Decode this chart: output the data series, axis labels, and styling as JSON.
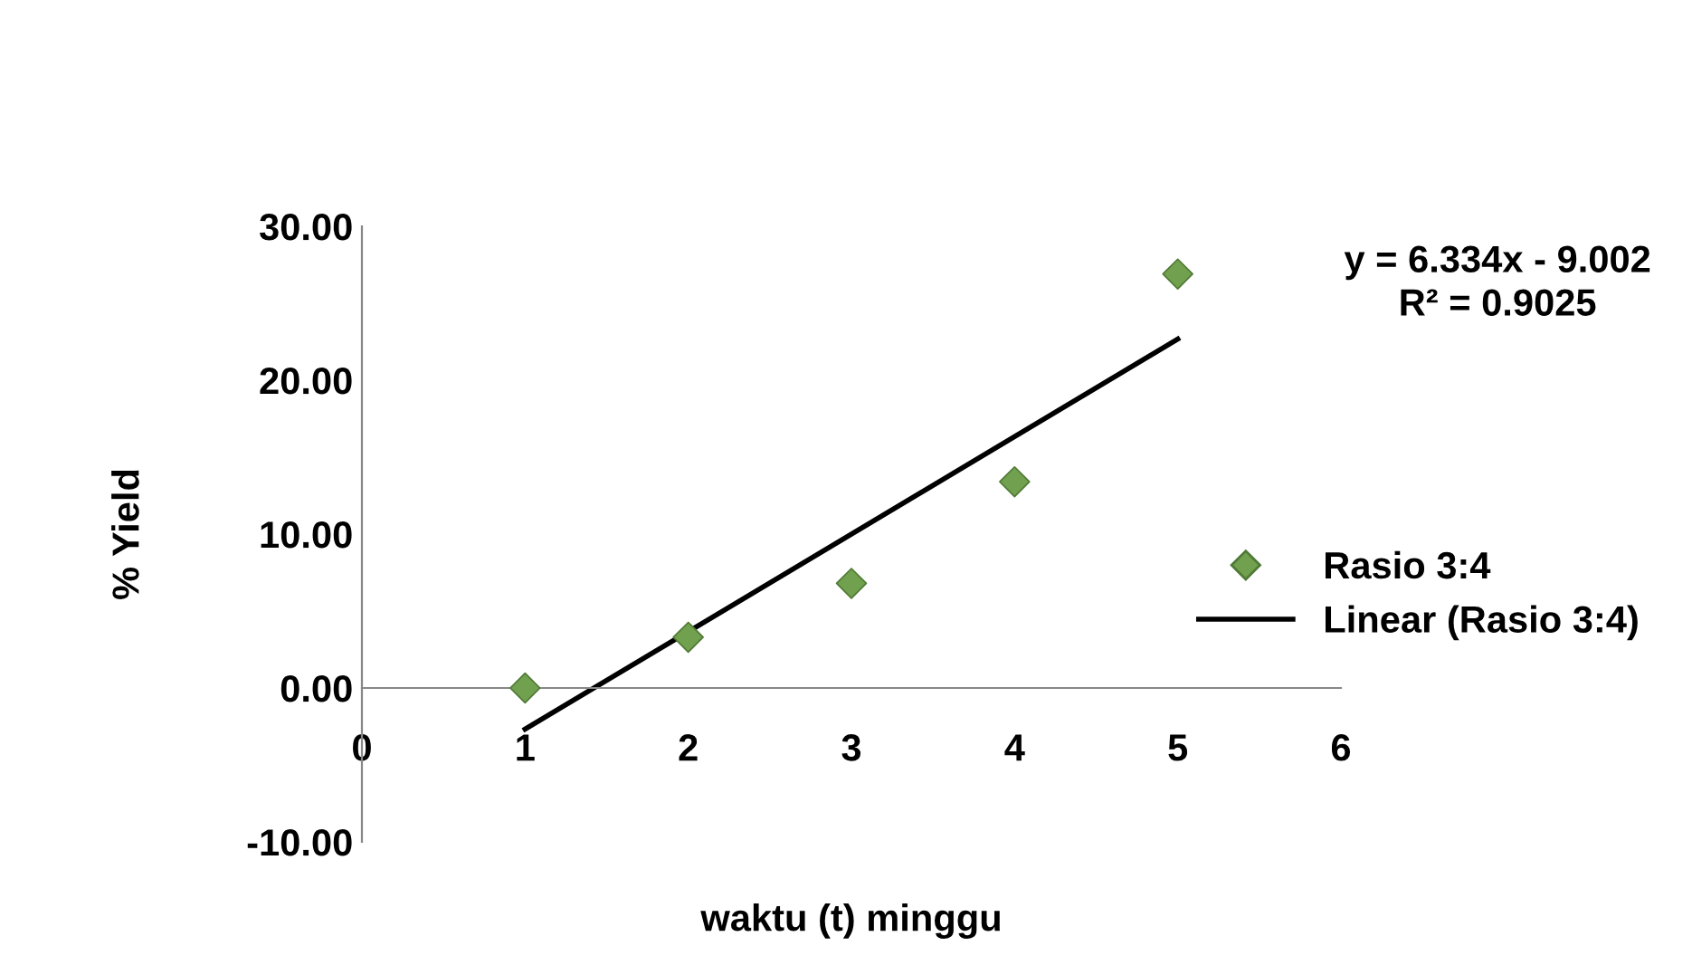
{
  "chart_data": {
    "type": "scatter",
    "xlabel": "waktu (t) minggu",
    "ylabel": "% Yield",
    "annotations": [
      "y = 6.334x - 9.002\nR² = 0.9025"
    ],
    "x": [
      1,
      2,
      3,
      4,
      5
    ],
    "series": [
      {
        "name": "Rasio 3:4",
        "color": "#71a04f",
        "marker": "diamond",
        "values": [
          0,
          3.3,
          6.8,
          13.4,
          26.9
        ]
      },
      {
        "name": "Linear (Rasio 3:4)",
        "type": "line",
        "color": "#000000",
        "x": [
          1,
          5
        ],
        "values": [
          -2.67,
          22.67
        ],
        "marker": "none",
        "line_style": "solid"
      }
    ],
    "xlim": [
      0,
      6
    ],
    "xticks": [
      0,
      1,
      2,
      3,
      4,
      5,
      6
    ],
    "ylim": [
      -10,
      30
    ],
    "yticks": [
      {
        "value": -10,
        "label": "-10.00"
      },
      {
        "value": 0,
        "label": "0.00"
      },
      {
        "value": 10,
        "label": "10.00"
      },
      {
        "value": 20,
        "label": "20.00"
      },
      {
        "value": 30,
        "label": "30.00"
      }
    ],
    "grid": false,
    "legend": "right"
  }
}
